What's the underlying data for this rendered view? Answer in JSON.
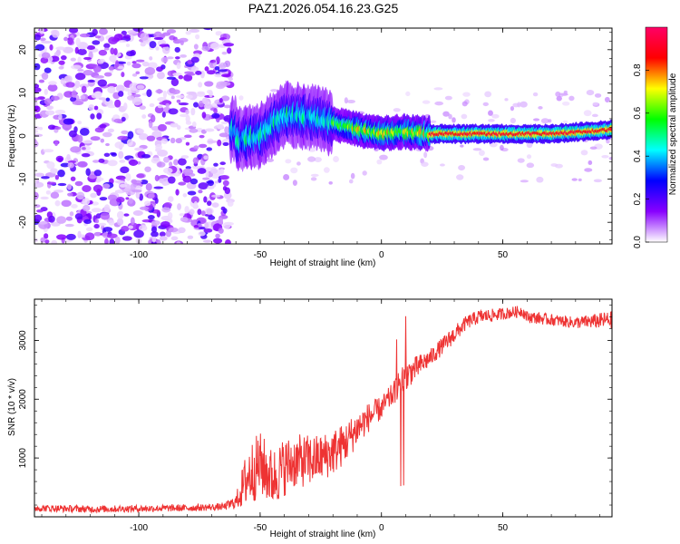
{
  "title": "PAZ1.2026.054.16.23.G25",
  "chart_data": [
    {
      "type": "heatmap",
      "title": "PAZ1.2026.054.16.23.G25",
      "xlabel": "Height of straight line (km)",
      "ylabel": "Frequency (Hz)",
      "xlim": [
        -143,
        95
      ],
      "ylim": [
        -25,
        25
      ],
      "xticks": [
        -100,
        -50,
        0,
        50
      ],
      "xtick_labels": [
        "-100",
        "-50",
        "0",
        "50"
      ],
      "yticks": [
        -20,
        -10,
        0,
        10,
        20
      ],
      "ytick_labels": [
        "-20",
        "-10",
        "0",
        "10",
        "20"
      ],
      "colorbar": {
        "label": "Normalized spectral amplitude",
        "range": [
          0,
          1
        ],
        "ticks": [
          0.0,
          0.2,
          0.4,
          0.6,
          0.8
        ],
        "tick_labels": [
          "0.0",
          "0.2",
          "0.4",
          "0.6",
          "0.8"
        ],
        "colormap": [
          "#ffffff",
          "#8800ff",
          "#0000ff",
          "#00ffff",
          "#00ff00",
          "#ffff00",
          "#ff0000",
          "#ff0066"
        ]
      },
      "signal_ridge": {
        "description_points_x": [
          -60,
          -50,
          -40,
          -30,
          -20,
          -10,
          0,
          10,
          20,
          30,
          50,
          70,
          95
        ],
        "frequency_hz": [
          -1,
          0,
          5,
          4.5,
          3,
          1.5,
          0.5,
          1,
          0.5,
          0.5,
          0.5,
          0.5,
          1.5
        ]
      }
    },
    {
      "type": "line",
      "xlabel": "Height of straight line (km)",
      "ylabel": "SNR (10 * v/v)",
      "xlim": [
        -143,
        95
      ],
      "ylim": [
        0,
        3700
      ],
      "xticks": [
        -100,
        -50,
        0,
        50
      ],
      "xtick_labels": [
        "-100",
        "-50",
        "0",
        "50"
      ],
      "yticks": [
        1000,
        2000,
        3000
      ],
      "ytick_labels": [
        "1000",
        "2000",
        "3000"
      ],
      "series": [
        {
          "name": "SNR",
          "color": "#ee3333",
          "x": [
            -143,
            -120,
            -100,
            -80,
            -65,
            -60,
            -55,
            -50,
            -45,
            -40,
            -35,
            -30,
            -25,
            -20,
            -15,
            -10,
            -5,
            0,
            5,
            8,
            10,
            15,
            20,
            25,
            30,
            35,
            40,
            50,
            58,
            60,
            70,
            80,
            95
          ],
          "y": [
            150,
            130,
            140,
            150,
            170,
            250,
            700,
            900,
            650,
            850,
            950,
            950,
            1000,
            1100,
            1250,
            1500,
            1700,
            1850,
            2100,
            2300,
            2400,
            2550,
            2700,
            2900,
            3100,
            3300,
            3400,
            3450,
            3500,
            3400,
            3350,
            3300,
            3350
          ],
          "noise_amplitude": [
            60,
            60,
            60,
            60,
            60,
            120,
            550,
            550,
            500,
            500,
            450,
            450,
            400,
            400,
            350,
            300,
            250,
            200,
            200,
            250,
            250,
            200,
            150,
            150,
            150,
            120,
            120,
            100,
            100,
            100,
            100,
            100,
            150
          ]
        }
      ]
    }
  ]
}
